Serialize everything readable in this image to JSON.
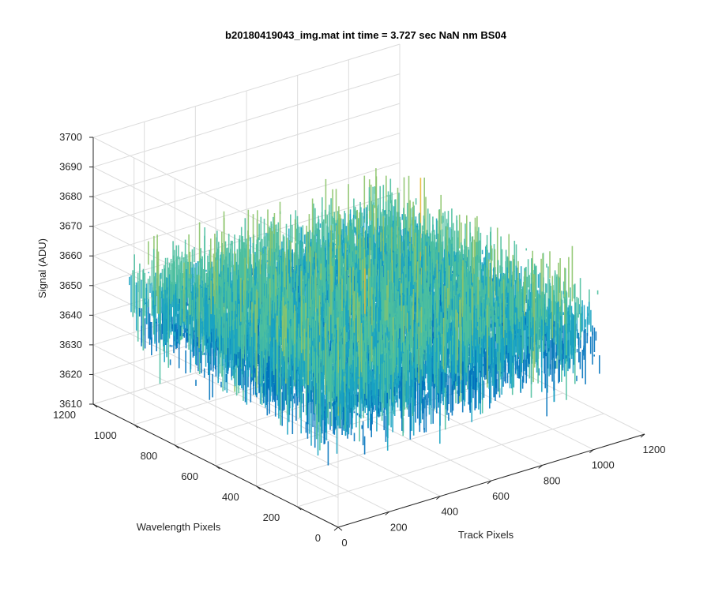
{
  "chart_data": {
    "type": "surface",
    "title": "b20180419043_img.mat int time = 3.727 sec  NaN nm BS04",
    "xlabel": "Track Pixels",
    "ylabel": "Wavelength Pixels",
    "zlabel": "Signal (ADU)",
    "xlim": [
      0,
      1200
    ],
    "ylim": [
      0,
      1200
    ],
    "zlim": [
      3610,
      3700
    ],
    "x_ticks": [
      "0",
      "200",
      "400",
      "600",
      "800",
      "1000",
      "1200"
    ],
    "y_ticks": [
      "0",
      "200",
      "400",
      "600",
      "800",
      "1000",
      "1200"
    ],
    "z_ticks": [
      "3610",
      "3620",
      "3630",
      "3640",
      "3650",
      "3660",
      "3670",
      "3680",
      "3690",
      "3700"
    ],
    "data_extent": {
      "x": [
        1,
        1024
      ],
      "y": [
        1,
        1024
      ]
    },
    "signal_summary": {
      "mean": 3650,
      "min_approx": 3625,
      "max_approx": 3690
    },
    "colormap": [
      "#0072bd",
      "#1aa3c2",
      "#4dbf9f",
      "#8cc46a",
      "#e8b832"
    ],
    "grid": true,
    "view": "3d-perspective"
  }
}
